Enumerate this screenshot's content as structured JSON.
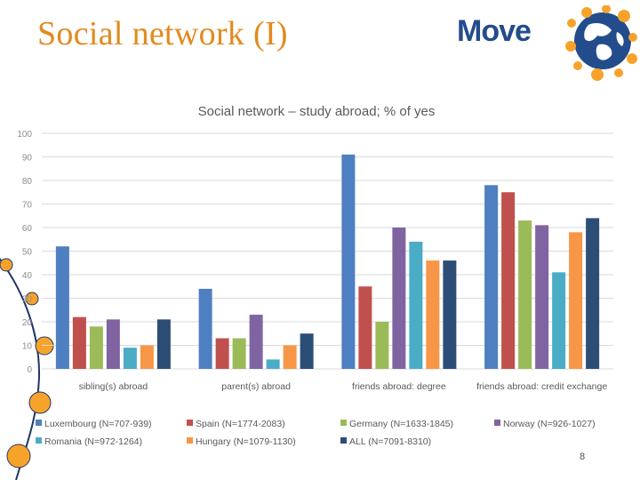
{
  "slide": {
    "title": "Social network (I)",
    "logo_text": "Move",
    "page_number": "8"
  },
  "colors": {
    "title": "#e28a1f",
    "logo": "#234c8c",
    "decor_line": "#1f3763",
    "decor_dots": "#f7a32b"
  },
  "icons": [
    "globe-icon"
  ],
  "chart_data": {
    "type": "bar",
    "title": "Social network – study abroad; % of yes",
    "xlabel": "",
    "ylabel": "",
    "ylim": [
      0,
      100
    ],
    "yticks": [
      "0",
      "10",
      "20",
      "30",
      "40",
      "50",
      "60",
      "70",
      "80",
      "90",
      "100"
    ],
    "grid": true,
    "legend_position": "bottom",
    "categories": [
      "sibling(s) abroad",
      "parent(s) abroad",
      "friends abroad: degree",
      "friends abroad: credit exchange"
    ],
    "series": [
      {
        "name": "Luxembourg (N=707-939)",
        "color": "#4e7fc0",
        "values": [
          52,
          34,
          91,
          78
        ]
      },
      {
        "name": "Spain (N=1774-2083)",
        "color": "#c0504d",
        "values": [
          22,
          13,
          35,
          75
        ]
      },
      {
        "name": "Germany (N=1633-1845)",
        "color": "#9bbb59",
        "values": [
          18,
          13,
          20,
          63
        ]
      },
      {
        "name": "Norway (N=926-1027)",
        "color": "#8064a2",
        "values": [
          21,
          23,
          60,
          61
        ]
      },
      {
        "name": "Romania (N=972-1264)",
        "color": "#4bacc6",
        "values": [
          9,
          4,
          54,
          41
        ]
      },
      {
        "name": "Hungary (N=1079-1130)",
        "color": "#f79646",
        "values": [
          10,
          10,
          46,
          58
        ]
      },
      {
        "name": "ALL (N=7091-8310)",
        "color": "#2c4d75",
        "values": [
          21,
          15,
          46,
          64
        ]
      }
    ]
  }
}
